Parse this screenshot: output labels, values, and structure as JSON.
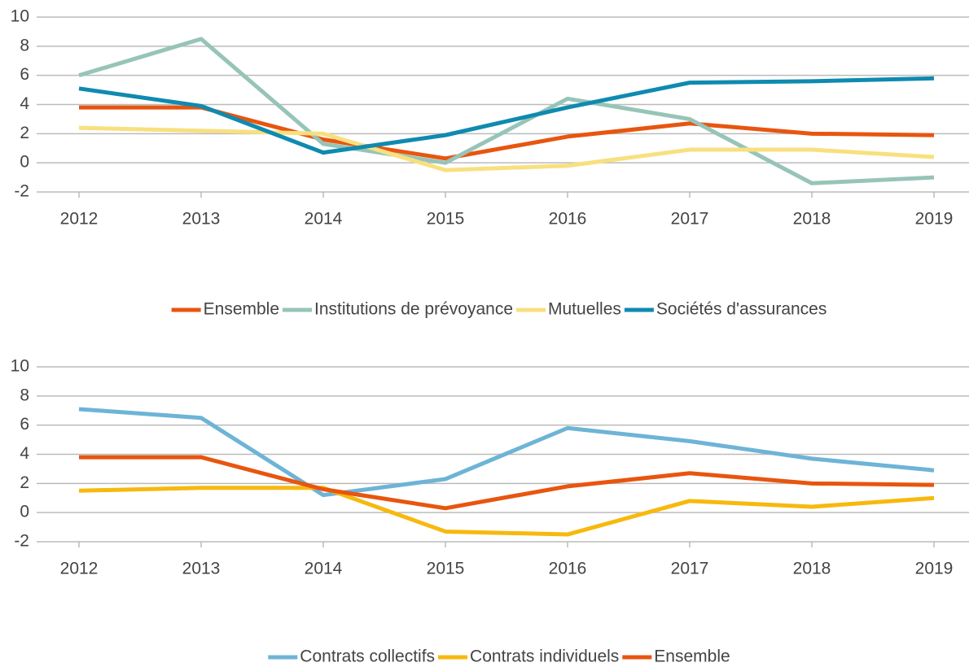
{
  "chart_data": [
    {
      "type": "line",
      "categories": [
        "2012",
        "2013",
        "2014",
        "2015",
        "2016",
        "2017",
        "2018",
        "2019"
      ],
      "series": [
        {
          "name": "Ensemble",
          "color": "#e8550f",
          "values": [
            3.8,
            3.8,
            1.6,
            0.3,
            1.8,
            2.7,
            2.0,
            1.9
          ]
        },
        {
          "name": "Institutions de prévoyance",
          "color": "#97c4b8",
          "values": [
            6.0,
            8.5,
            1.3,
            0.0,
            4.4,
            3.0,
            -1.4,
            -1.0
          ]
        },
        {
          "name": "Mutuelles",
          "color": "#f8e07f",
          "values": [
            2.4,
            2.2,
            2.0,
            -0.5,
            -0.2,
            0.9,
            0.9,
            0.4
          ]
        },
        {
          "name": "Sociétés d'assurances",
          "color": "#0f8ab0",
          "values": [
            5.1,
            3.9,
            0.7,
            1.9,
            3.8,
            5.5,
            5.6,
            5.8
          ]
        }
      ],
      "ylim": [
        -2,
        10
      ],
      "yticks": [
        -2,
        0,
        2,
        4,
        6,
        8,
        10
      ],
      "grid": true,
      "legend": "bottom"
    },
    {
      "type": "line",
      "categories": [
        "2012",
        "2013",
        "2014",
        "2015",
        "2016",
        "2017",
        "2018",
        "2019"
      ],
      "series": [
        {
          "name": "Contrats collectifs",
          "color": "#6db4d6",
          "values": [
            7.1,
            6.5,
            1.2,
            2.3,
            5.8,
            4.9,
            3.7,
            2.9
          ]
        },
        {
          "name": "Contrats individuels",
          "color": "#f7b90e",
          "values": [
            1.5,
            1.7,
            1.7,
            -1.3,
            -1.5,
            0.8,
            0.4,
            1.0
          ]
        },
        {
          "name": "Ensemble",
          "color": "#e8550f",
          "values": [
            3.8,
            3.8,
            1.6,
            0.3,
            1.8,
            2.7,
            2.0,
            1.9
          ]
        }
      ],
      "ylim": [
        -2,
        10
      ],
      "yticks": [
        -2,
        0,
        2,
        4,
        6,
        8,
        10
      ],
      "grid": true,
      "legend": "bottom"
    }
  ]
}
